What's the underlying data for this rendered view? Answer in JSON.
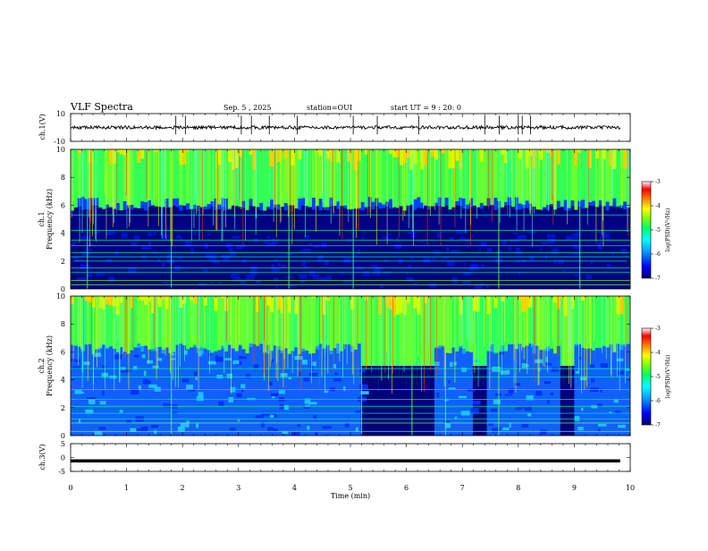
{
  "header": {
    "title": "VLF Spectra",
    "date": "Sep. 5 , 2025",
    "station": "station=OUI",
    "start": "start  UT  =  9 : 20: 0"
  },
  "chart_data": {
    "type": "heatmap",
    "xlabel": "Time  (min)",
    "xlim": [
      0,
      10
    ],
    "xticks": [
      "0",
      "1",
      "2",
      "3",
      "4",
      "5",
      "6",
      "7",
      "8",
      "9",
      "10"
    ],
    "panels": [
      {
        "name": "ch1-waveform",
        "type": "line",
        "ylabel": "ch.1(V)",
        "ylim": [
          -10,
          10
        ],
        "yticks": [
          "10",
          "-10"
        ],
        "baseline": 0,
        "amplitude": 1.2,
        "spikes": [
          1.88,
          2.05,
          3.05,
          3.23,
          3.55,
          4.05,
          5.05,
          5.48,
          6.22,
          7.4,
          7.66,
          8.0,
          8.07,
          8.22
        ]
      },
      {
        "name": "ch1-spectrogram",
        "type": "heatmap",
        "ylabel_line1": "ch.1",
        "ylabel_line2": "Frequency  (kHz)",
        "ylim": [
          0,
          10
        ],
        "yticks": [
          "0",
          "2",
          "4",
          "6",
          "8",
          "10"
        ],
        "hiss_top_khz": 6.0,
        "lines_khz": [
          0.3,
          0.6,
          1.2,
          1.5,
          2.0,
          2.3,
          2.6,
          3.1,
          3.5,
          4.2,
          5.3
        ],
        "vertical_bursts_min": [
          0.3,
          1.8,
          3.9,
          5.05,
          7.65,
          9.1
        ]
      },
      {
        "name": "ch2-spectrogram",
        "type": "heatmap",
        "ylabel_line1": "ch.2",
        "ylabel_line2": "Frequency  (kHz)",
        "ylim": [
          0,
          10
        ],
        "yticks": [
          "0",
          "2",
          "4",
          "6",
          "8",
          "10"
        ],
        "hiss_top_khz": 6.0,
        "lines_khz": [
          0.3,
          0.9,
          1.2,
          1.6,
          2.1,
          2.6,
          3.3,
          4.2,
          4.8
        ],
        "dark_regions_min": [
          [
            5.2,
            6.5
          ],
          [
            7.2,
            7.45
          ],
          [
            8.75,
            9.0
          ]
        ],
        "vertical_bursts_min": [
          1.8,
          5.2,
          6.1,
          6.7,
          7.65
        ]
      },
      {
        "name": "ch3-waveform",
        "type": "line",
        "ylabel": "ch.3(V)",
        "ylim": [
          -5,
          5
        ],
        "yticks": [
          "5",
          "0",
          "-5"
        ],
        "baseline": -1.2
      }
    ],
    "colorbar": {
      "label": "log(PSD)(V²/Hz)",
      "range": [
        -7,
        -3
      ],
      "ticks": [
        "-3",
        "-4",
        "-5",
        "-6",
        "-7"
      ],
      "colors": [
        "#000070",
        "#0000ff",
        "#00a0ff",
        "#00ffff",
        "#00ff66",
        "#7fff00",
        "#ffff00",
        "#ff8000",
        "#ff0000",
        "#ffffff"
      ]
    }
  }
}
